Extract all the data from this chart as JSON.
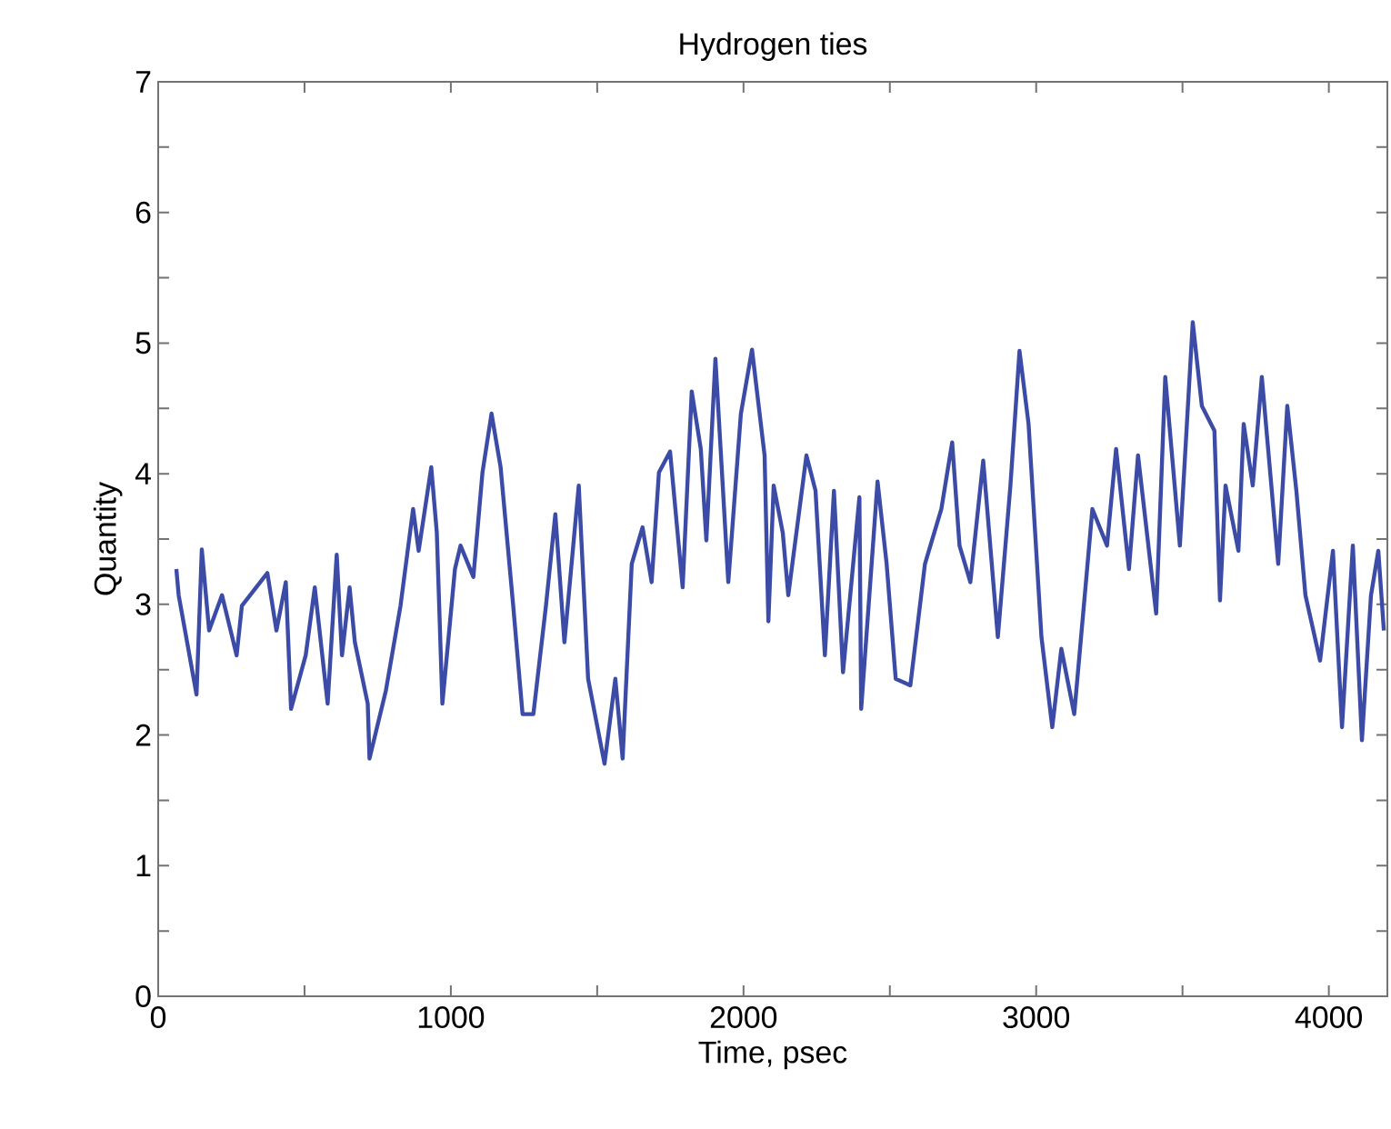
{
  "chart_data": {
    "type": "line",
    "title": "Hydrogen ties",
    "xlabel": "Time, psec",
    "ylabel": "Quantity",
    "color": "#3b4ba6",
    "xlim": [
      0,
      4200
    ],
    "ylim": [
      0,
      7
    ],
    "xticks": [
      0,
      {
        "value": 500,
        "label": null
      },
      1000,
      {
        "value": 1500,
        "label": null
      },
      2000,
      {
        "value": 2500,
        "label": null
      },
      3000,
      {
        "value": 3500,
        "label": null
      },
      4000
    ],
    "yticks": [
      0,
      {
        "value": 0.5,
        "label": null
      },
      1,
      {
        "value": 1.5,
        "label": null
      },
      2,
      {
        "value": 2.5,
        "label": null
      },
      3,
      {
        "value": 3.5,
        "label": null
      },
      4,
      {
        "value": 4.5,
        "label": null
      },
      5,
      {
        "value": 5.5,
        "label": null
      },
      6,
      {
        "value": 6.5,
        "label": null
      },
      7
    ],
    "x": [
      62,
      70,
      131,
      149,
      174,
      218,
      268,
      286,
      373,
      404,
      436,
      454,
      504,
      535,
      579,
      610,
      628,
      654,
      672,
      716,
      722,
      778,
      828,
      871,
      890,
      933,
      952,
      971,
      1014,
      1033,
      1077,
      1108,
      1139,
      1170,
      1213,
      1245,
      1282,
      1325,
      1357,
      1388,
      1437,
      1469,
      1525,
      1562,
      1587,
      1618,
      1655,
      1686,
      1711,
      1749,
      1792,
      1823,
      1854,
      1873,
      1904,
      1948,
      1991,
      2029,
      2072,
      2085,
      2103,
      2134,
      2153,
      2215,
      2246,
      2278,
      2309,
      2340,
      2396,
      2402,
      2458,
      2489,
      2520,
      2570,
      2620,
      2676,
      2713,
      2738,
      2775,
      2819,
      2869,
      2912,
      2943,
      2974,
      3018,
      3055,
      3086,
      3130,
      3174,
      3192,
      3242,
      3273,
      3317,
      3348,
      3410,
      3441,
      3491,
      3535,
      3566,
      3609,
      3628,
      3647,
      3691,
      3709,
      3740,
      3771,
      3827,
      3858,
      3889,
      3920,
      3970,
      4014,
      4045,
      4082,
      4113,
      4144,
      4169,
      4188
    ],
    "values": [
      3.27,
      3.07,
      2.31,
      3.42,
      2.8,
      3.07,
      2.61,
      2.99,
      3.24,
      2.8,
      3.17,
      2.2,
      2.61,
      3.13,
      2.24,
      3.38,
      2.61,
      3.13,
      2.71,
      2.24,
      1.82,
      2.34,
      2.99,
      3.73,
      3.41,
      4.05,
      3.55,
      2.24,
      3.27,
      3.45,
      3.21,
      4.01,
      4.46,
      4.05,
      2.99,
      2.16,
      2.16,
      2.99,
      3.69,
      2.71,
      3.91,
      2.43,
      1.78,
      2.43,
      1.82,
      3.31,
      3.59,
      3.17,
      4.01,
      4.17,
      3.13,
      4.63,
      4.19,
      3.49,
      4.88,
      3.17,
      4.46,
      4.95,
      4.14,
      2.87,
      3.91,
      3.55,
      3.07,
      4.14,
      3.87,
      2.61,
      3.87,
      2.48,
      3.82,
      2.2,
      3.94,
      3.31,
      2.43,
      2.38,
      3.31,
      3.73,
      4.24,
      3.45,
      3.17,
      4.1,
      2.75,
      3.91,
      4.94,
      4.38,
      2.75,
      2.06,
      2.66,
      2.16,
      3.27,
      3.73,
      3.45,
      4.19,
      3.27,
      4.14,
      2.93,
      4.74,
      3.45,
      5.16,
      4.52,
      4.33,
      3.03,
      3.91,
      3.41,
      4.38,
      3.91,
      4.74,
      3.31,
      4.52,
      3.87,
      3.07,
      2.57,
      3.41,
      2.06,
      3.45,
      1.96,
      3.07,
      3.41,
      2.8
    ]
  }
}
